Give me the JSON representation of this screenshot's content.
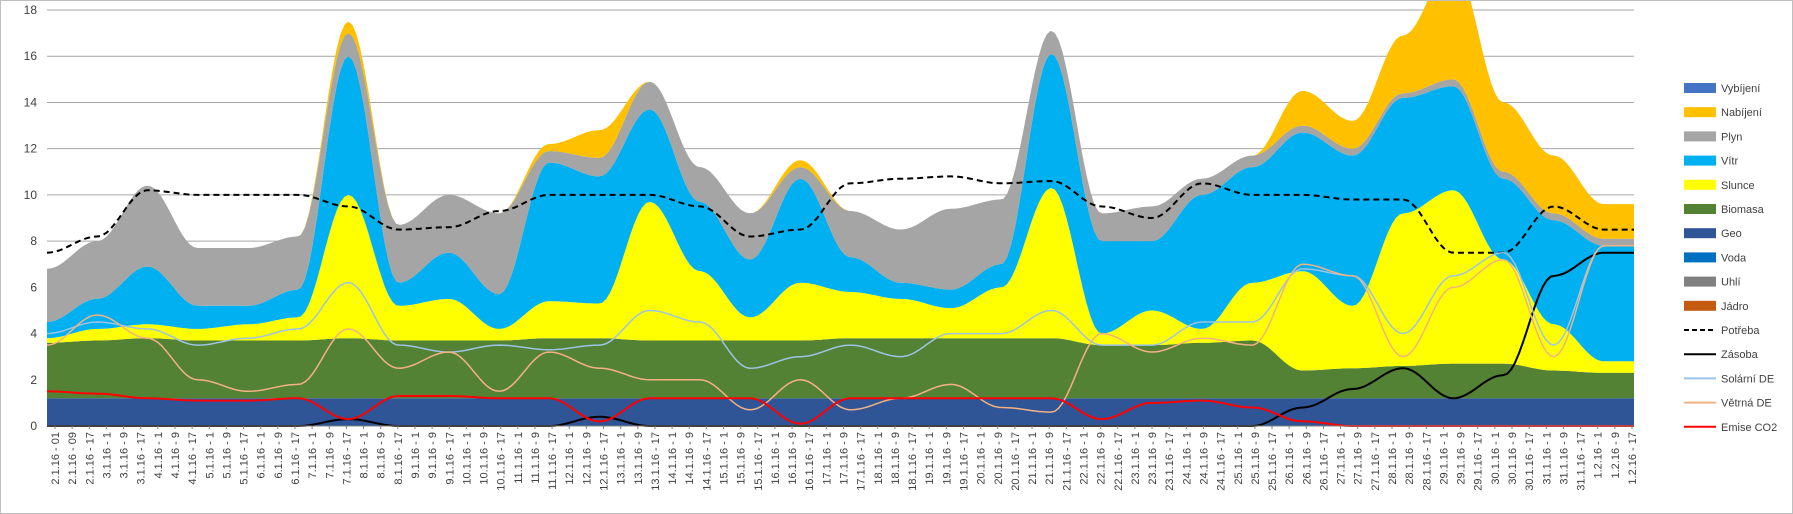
{
  "chart_data": {
    "type": "area",
    "ylim": [
      0,
      18
    ],
    "yticks": [
      0,
      2,
      4,
      6,
      8,
      10,
      12,
      14,
      16,
      18
    ],
    "grid": true,
    "legend_position": "right",
    "x_tick_labels": [
      "2.1.16 - 01",
      "2.1.16 - 09",
      "2.1.16 - 17",
      "3.1.16 - 1",
      "3.1.16 - 9",
      "3.1.16 - 17",
      "4.1.16 - 1",
      "4.1.16 - 9",
      "4.1.16 - 17",
      "5.1.16 - 1",
      "5.1.16 - 9",
      "5.1.16 - 17",
      "6.1.16 - 1",
      "6.1.16 - 9",
      "6.1.16 - 17",
      "7.1.16 - 1",
      "7.1.16 - 9",
      "7.1.16 - 17",
      "8.1.16 - 1",
      "8.1.16 - 9",
      "8.1.16 - 17",
      "9.1.16 - 1",
      "9.1.16 - 9",
      "9.1.16 - 17",
      "10.1.16 - 1",
      "10.1.16 - 9",
      "10.1.16 - 17",
      "11.1.16 - 1",
      "11.1.16 - 9",
      "11.1.16 - 17",
      "12.1.16 - 1",
      "12.1.16 - 9",
      "12.1.16 - 17",
      "13.1.16 - 1",
      "13.1.16 - 9",
      "13.1.16 - 17",
      "14.1.16 - 1",
      "14.1.16 - 9",
      "14.1.16 - 17",
      "15.1.16 - 1",
      "15.1.16 - 9",
      "15.1.16 - 17",
      "16.1.16 - 1",
      "16.1.16 - 9",
      "16.1.16 - 17",
      "17.1.16 - 1",
      "17.1.16 - 9",
      "17.1.16 - 17",
      "18.1.16 - 1",
      "18.1.16 - 9",
      "18.1.16 - 17",
      "19.1.16 - 1",
      "19.1.16 - 9",
      "19.1.16 - 17",
      "20.1.16 - 1",
      "20.1.16 - 9",
      "20.1.16 - 17",
      "21.1.16 - 1",
      "21.1.16 - 9",
      "21.1.16 - 17",
      "22.1.16 - 1",
      "22.1.16 - 9",
      "22.1.16 - 17",
      "23.1.16 - 1",
      "23.1.16 - 9",
      "23.1.16 - 17",
      "24.1.16 - 1",
      "24.1.16 - 9",
      "24.1.16 - 17",
      "25.1.16 - 1",
      "25.1.16 - 9",
      "25.1.16 - 17",
      "26.1.16 - 1",
      "26.1.16 - 9",
      "26.1.16 - 17",
      "27.1.16 - 1",
      "27.1.16 - 9",
      "27.1.16 - 17",
      "28.1.16 - 1",
      "28.1.16 - 9",
      "28.1.16 - 17",
      "29.1.16 - 1",
      "29.1.16 - 9",
      "29.1.16 - 17",
      "30.1.16 - 1",
      "30.1.16 - 9",
      "30.1.16 - 17",
      "31.1.16 - 1",
      "31.1.16 - 9",
      "31.1.16 - 17",
      "1.2.16 - 1",
      "1.2.16 - 9",
      "1.2.16 - 17"
    ],
    "legend": [
      {
        "name": "Vybíjení",
        "kind": "area",
        "color": "#4472c4"
      },
      {
        "name": "Nabíjení",
        "kind": "area",
        "color": "#ffc000"
      },
      {
        "name": "Plyn",
        "kind": "area",
        "color": "#a5a5a5"
      },
      {
        "name": "Vítr",
        "kind": "area",
        "color": "#00b0f0"
      },
      {
        "name": "Slunce",
        "kind": "area",
        "color": "#ffff00"
      },
      {
        "name": "Biomasa",
        "kind": "area",
        "color": "#548235"
      },
      {
        "name": "Geo",
        "kind": "area",
        "color": "#2f5597"
      },
      {
        "name": "Voda",
        "kind": "area",
        "color": "#0070c0"
      },
      {
        "name": "Uhlí",
        "kind": "area",
        "color": "#808080"
      },
      {
        "name": "Jádro",
        "kind": "area",
        "color": "#c55a11"
      },
      {
        "name": "Potřeba",
        "kind": "dashed",
        "color": "#000000"
      },
      {
        "name": "Zásoba",
        "kind": "line",
        "color": "#000000"
      },
      {
        "name": "Solární DE",
        "kind": "line",
        "color": "#9dc3e6"
      },
      {
        "name": "Větrná DE",
        "kind": "line",
        "color": "#f4b183"
      },
      {
        "name": "Emise CO2",
        "kind": "line",
        "color": "#ff0000"
      }
    ],
    "x_days": [
      2,
      3,
      4,
      5,
      6,
      7,
      8,
      9,
      10,
      11,
      12,
      13,
      14,
      15,
      16,
      17,
      18,
      19,
      20,
      21,
      22,
      23,
      24,
      25,
      26,
      27,
      28,
      29,
      30,
      31,
      32,
      33
    ],
    "series": [
      {
        "name": "Geo",
        "values": [
          1.2,
          1.2,
          1.2,
          1.2,
          1.2,
          1.2,
          1.2,
          1.2,
          1.2,
          1.2,
          1.2,
          1.2,
          1.2,
          1.2,
          1.2,
          1.2,
          1.2,
          1.2,
          1.2,
          1.2,
          1.2,
          1.2,
          1.2,
          1.2,
          1.2,
          1.2,
          1.2,
          1.2,
          1.2,
          1.2,
          1.2,
          1.2
        ]
      },
      {
        "name": "Biomasa",
        "values": [
          2.4,
          2.5,
          2.6,
          2.5,
          2.5,
          2.5,
          2.6,
          2.5,
          2.5,
          2.5,
          2.6,
          2.6,
          2.5,
          2.5,
          2.5,
          2.5,
          2.6,
          2.6,
          2.6,
          2.6,
          2.6,
          2.3,
          2.3,
          2.4,
          2.5,
          1.2,
          1.3,
          1.4,
          1.5,
          1.5,
          1.2,
          1.1
        ]
      },
      {
        "name": "Slunce",
        "values": [
          0.2,
          0.5,
          0.6,
          0.5,
          0.7,
          1.0,
          6.2,
          1.5,
          1.8,
          0.5,
          1.6,
          1.5,
          6.0,
          3.0,
          1.0,
          2.5,
          2.0,
          1.7,
          1.3,
          2.2,
          6.5,
          0.5,
          1.5,
          0.6,
          2.5,
          4.3,
          2.7,
          6.6,
          7.5,
          4.5,
          2.0,
          0.5
        ]
      },
      {
        "name": "Vítr",
        "values": [
          0.7,
          1.3,
          2.5,
          1.0,
          0.8,
          1.2,
          6.0,
          1.0,
          2.0,
          1.5,
          6.0,
          5.5,
          4.0,
          3.0,
          2.5,
          4.5,
          1.5,
          0.7,
          0.8,
          1.0,
          5.8,
          4.0,
          3.0,
          5.8,
          5.0,
          6.0,
          6.5,
          5.0,
          4.5,
          3.5,
          4.5,
          5.0
        ]
      },
      {
        "name": "Plyn",
        "values": [
          2.3,
          2.5,
          3.5,
          2.5,
          2.5,
          2.3,
          1.0,
          2.5,
          2.5,
          3.5,
          0.5,
          0.8,
          1.2,
          1.5,
          2.0,
          0.5,
          2.0,
          2.3,
          3.5,
          2.8,
          1.0,
          1.2,
          1.5,
          0.7,
          0.5,
          0.3,
          0.3,
          0.2,
          0.3,
          0.3,
          0.3,
          0.3
        ]
      },
      {
        "name": "Nabíjení",
        "values": [
          0,
          0,
          0,
          0,
          0,
          0,
          0.5,
          0,
          0,
          0,
          0.3,
          1.2,
          0,
          0,
          0,
          0.3,
          0,
          0,
          0,
          0,
          0,
          0,
          0,
          0,
          0,
          1.5,
          1.2,
          2.5,
          5.0,
          3.0,
          2.5,
          1.5
        ]
      },
      {
        "name": "Potřeba",
        "values": [
          7.5,
          8.2,
          10.2,
          10.0,
          10.0,
          10.0,
          9.5,
          8.5,
          8.6,
          9.3,
          10.0,
          10.0,
          10.0,
          9.5,
          8.2,
          8.5,
          10.5,
          10.7,
          10.8,
          10.5,
          10.6,
          9.5,
          9.0,
          10.5,
          10.0,
          10.0,
          9.8,
          9.8,
          7.5,
          7.5,
          9.5,
          8.5
        ]
      },
      {
        "name": "Zásoba",
        "values": [
          0,
          0,
          0,
          0,
          0,
          0,
          0.3,
          0,
          0,
          0,
          0,
          0.4,
          0,
          0,
          0,
          0,
          0,
          0,
          0,
          0,
          0,
          0,
          0,
          0,
          0,
          0.8,
          1.6,
          2.5,
          1.2,
          2.2,
          6.5,
          7.5
        ]
      },
      {
        "name": "Solární DE",
        "values": [
          4.0,
          4.5,
          4.2,
          3.5,
          3.8,
          4.2,
          6.2,
          3.5,
          3.2,
          3.5,
          3.3,
          3.5,
          5.0,
          4.5,
          2.5,
          3.0,
          3.5,
          3.0,
          4.0,
          4.0,
          5.0,
          3.5,
          3.5,
          4.5,
          4.5,
          6.8,
          6.5,
          4.0,
          6.5,
          7.5,
          3.5,
          7.8
        ]
      },
      {
        "name": "Větrná DE",
        "values": [
          3.5,
          4.8,
          3.8,
          2.0,
          1.5,
          1.8,
          4.2,
          2.5,
          3.2,
          1.5,
          3.2,
          2.5,
          2.0,
          2.0,
          0.7,
          2.0,
          0.7,
          1.2,
          1.8,
          0.8,
          0.6,
          4.0,
          3.2,
          3.8,
          3.5,
          7.0,
          6.5,
          3.0,
          6.0,
          7.2,
          3.0,
          7.8
        ]
      },
      {
        "name": "Emise CO2",
        "values": [
          1.5,
          1.4,
          1.2,
          1.1,
          1.1,
          1.2,
          0.3,
          1.3,
          1.3,
          1.2,
          1.2,
          0.2,
          1.2,
          1.2,
          1.2,
          0.1,
          1.2,
          1.2,
          1.2,
          1.2,
          1.2,
          0.3,
          1.0,
          1.1,
          0.8,
          0.2,
          0.0,
          0.0,
          0.0,
          0.0,
          0.0,
          0.0
        ]
      }
    ]
  }
}
